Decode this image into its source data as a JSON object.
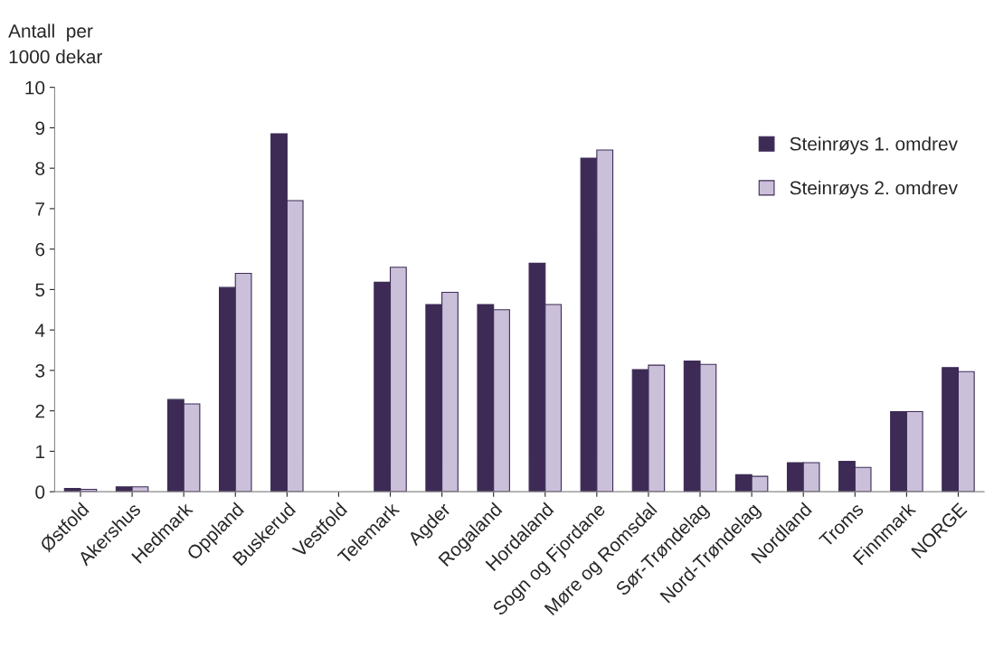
{
  "chart_data": {
    "type": "bar",
    "ylabel": "Antall  per\n1000 dekar",
    "categories": [
      "Østfold",
      "Akershus",
      "Hedmark",
      "Oppland",
      "Buskerud",
      "Vestfold",
      "Telemark",
      "Agder",
      "Rogaland",
      "Hordaland",
      "Sogn og Fjordane",
      "Møre og Romsdal",
      "Sør-Trøndelag",
      "Nord-Trøndelag",
      "Nordland",
      "Troms",
      "Finnmark",
      "NORGE"
    ],
    "series": [
      {
        "name": "Steinrøys 1. omdrev",
        "color": "#3d2b55",
        "values": [
          0.08,
          0.12,
          2.28,
          5.05,
          8.85,
          null,
          5.18,
          4.63,
          4.63,
          5.65,
          8.25,
          3.02,
          3.23,
          0.42,
          0.72,
          0.75,
          1.98,
          3.07
        ]
      },
      {
        "name": "Steinrøys 2. omdrev",
        "color": "#cbc0da",
        "values": [
          0.06,
          0.12,
          2.17,
          5.4,
          7.2,
          null,
          5.55,
          4.93,
          4.5,
          4.63,
          8.45,
          3.13,
          3.15,
          0.38,
          0.72,
          0.6,
          1.98,
          2.97
        ]
      }
    ],
    "ylim": [
      0,
      10
    ],
    "yticks": [
      0,
      1,
      2,
      3,
      4,
      5,
      6,
      7,
      8,
      9,
      10
    ],
    "grid": false,
    "legend": "top right"
  }
}
